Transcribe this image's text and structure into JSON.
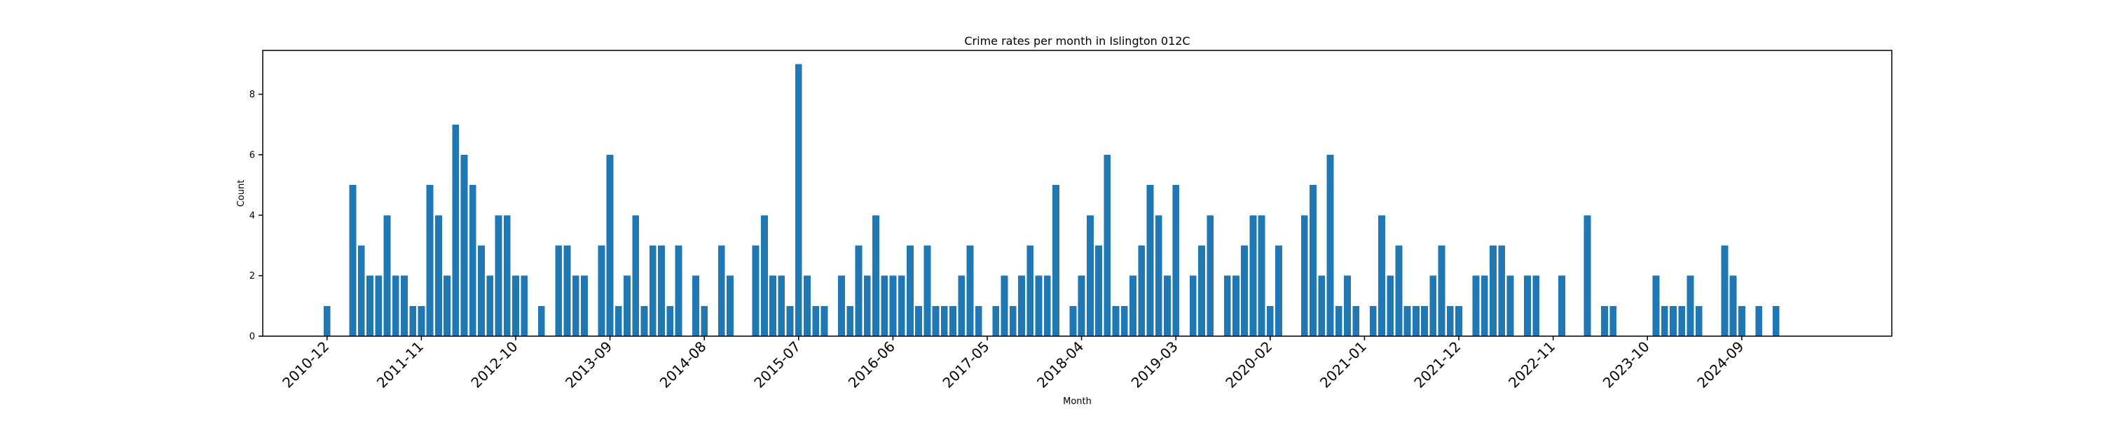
{
  "chart_data": {
    "type": "bar",
    "title": "Crime rates per month in Islington 012C",
    "xlabel": "Month",
    "ylabel": "Count",
    "color": "#1f77b4",
    "ylim": [
      0,
      9.45
    ],
    "y_ticks": [
      0,
      2,
      4,
      6,
      8
    ],
    "x_tick_labels": [
      "2010-12",
      "2011-11",
      "2012-10",
      "2013-09",
      "2014-08",
      "2015-07",
      "2016-06",
      "2017-05",
      "2018-04",
      "2019-03",
      "2020-02",
      "2021-01",
      "2021-12",
      "2022-11",
      "2023-10",
      "2024-09"
    ],
    "grid": false,
    "legend": "none",
    "categories": [
      "2010-12",
      "2011-01",
      "2011-02",
      "2011-03",
      "2011-04",
      "2011-05",
      "2011-06",
      "2011-07",
      "2011-08",
      "2011-09",
      "2011-10",
      "2011-11",
      "2011-12",
      "2012-01",
      "2012-02",
      "2012-03",
      "2012-04",
      "2012-05",
      "2012-06",
      "2012-07",
      "2012-08",
      "2012-09",
      "2012-10",
      "2012-11",
      "2012-12",
      "2013-01",
      "2013-02",
      "2013-03",
      "2013-04",
      "2013-05",
      "2013-06",
      "2013-07",
      "2013-08",
      "2013-09",
      "2013-10",
      "2013-11",
      "2013-12",
      "2014-01",
      "2014-02",
      "2014-03",
      "2014-04",
      "2014-05",
      "2014-06",
      "2014-07",
      "2014-08",
      "2014-09",
      "2014-10",
      "2014-11",
      "2014-12",
      "2015-01",
      "2015-02",
      "2015-03",
      "2015-04",
      "2015-05",
      "2015-06",
      "2015-07",
      "2015-08",
      "2015-09",
      "2015-10",
      "2015-11",
      "2015-12",
      "2016-01",
      "2016-02",
      "2016-03",
      "2016-04",
      "2016-05",
      "2016-06",
      "2016-07",
      "2016-08",
      "2016-09",
      "2016-10",
      "2016-11",
      "2016-12",
      "2017-01",
      "2017-02",
      "2017-03",
      "2017-04",
      "2017-05",
      "2017-06",
      "2017-07",
      "2017-08",
      "2017-09",
      "2017-10",
      "2017-11",
      "2017-12",
      "2018-01",
      "2018-02",
      "2018-03",
      "2018-04",
      "2018-05",
      "2018-06",
      "2018-07",
      "2018-08",
      "2018-09",
      "2018-10",
      "2018-11",
      "2018-12",
      "2019-01",
      "2019-02",
      "2019-03",
      "2019-04",
      "2019-05",
      "2019-06",
      "2019-07",
      "2019-08",
      "2019-09",
      "2019-10",
      "2019-11",
      "2019-12",
      "2020-01",
      "2020-02",
      "2020-03",
      "2020-04",
      "2020-05",
      "2020-06",
      "2020-07",
      "2020-08",
      "2020-09",
      "2020-10",
      "2020-11",
      "2020-12",
      "2021-01",
      "2021-02",
      "2021-03",
      "2021-04",
      "2021-05",
      "2021-06",
      "2021-07",
      "2021-08",
      "2021-09",
      "2021-10",
      "2021-11",
      "2021-12",
      "2022-01",
      "2022-02",
      "2022-03",
      "2022-04",
      "2022-05",
      "2022-06",
      "2022-07",
      "2022-08",
      "2022-09",
      "2022-10",
      "2022-11",
      "2022-12",
      "2023-01",
      "2023-02",
      "2023-03",
      "2023-04",
      "2023-05",
      "2023-06",
      "2023-07",
      "2023-08",
      "2023-09",
      "2023-10",
      "2023-11",
      "2023-12",
      "2024-01",
      "2024-02",
      "2024-03",
      "2024-04",
      "2024-05",
      "2024-06",
      "2024-07",
      "2024-08",
      "2024-09",
      "2024-10",
      "2024-11",
      "2024-12",
      "2025-01",
      "2025-02",
      "2025-03",
      "2025-04",
      "2025-05",
      "2025-06",
      "2025-07"
    ],
    "values": [
      1,
      0,
      0,
      5,
      3,
      2,
      2,
      4,
      2,
      2,
      1,
      1,
      5,
      4,
      2,
      7,
      6,
      5,
      3,
      2,
      4,
      4,
      2,
      2,
      0,
      1,
      0,
      3,
      3,
      2,
      2,
      0,
      3,
      6,
      1,
      2,
      4,
      1,
      3,
      3,
      1,
      3,
      0,
      2,
      1,
      0,
      3,
      2,
      0,
      0,
      3,
      4,
      2,
      2,
      1,
      9,
      2,
      1,
      1,
      0,
      2,
      1,
      3,
      2,
      4,
      2,
      2,
      2,
      3,
      1,
      3,
      1,
      1,
      1,
      2,
      3,
      1,
      0,
      1,
      2,
      1,
      2,
      3,
      2,
      2,
      5,
      0,
      1,
      2,
      4,
      3,
      6,
      1,
      1,
      2,
      3,
      5,
      4,
      2,
      5,
      0,
      2,
      3,
      4,
      0,
      2,
      2,
      3,
      4,
      4,
      1,
      3,
      0,
      0,
      4,
      5,
      2,
      6,
      1,
      2,
      1,
      0,
      1,
      4,
      2,
      3,
      1,
      1,
      1,
      2,
      3,
      1,
      1,
      0,
      2,
      2,
      3,
      3,
      2,
      0,
      2,
      2,
      0,
      0,
      2,
      0,
      0,
      4,
      0,
      1,
      1,
      0,
      0,
      0,
      0,
      2,
      1,
      1,
      1,
      2,
      1,
      0,
      0,
      3,
      2,
      1,
      0,
      1,
      0,
      1,
      0,
      0,
      0,
      0,
      0,
      0
    ]
  }
}
